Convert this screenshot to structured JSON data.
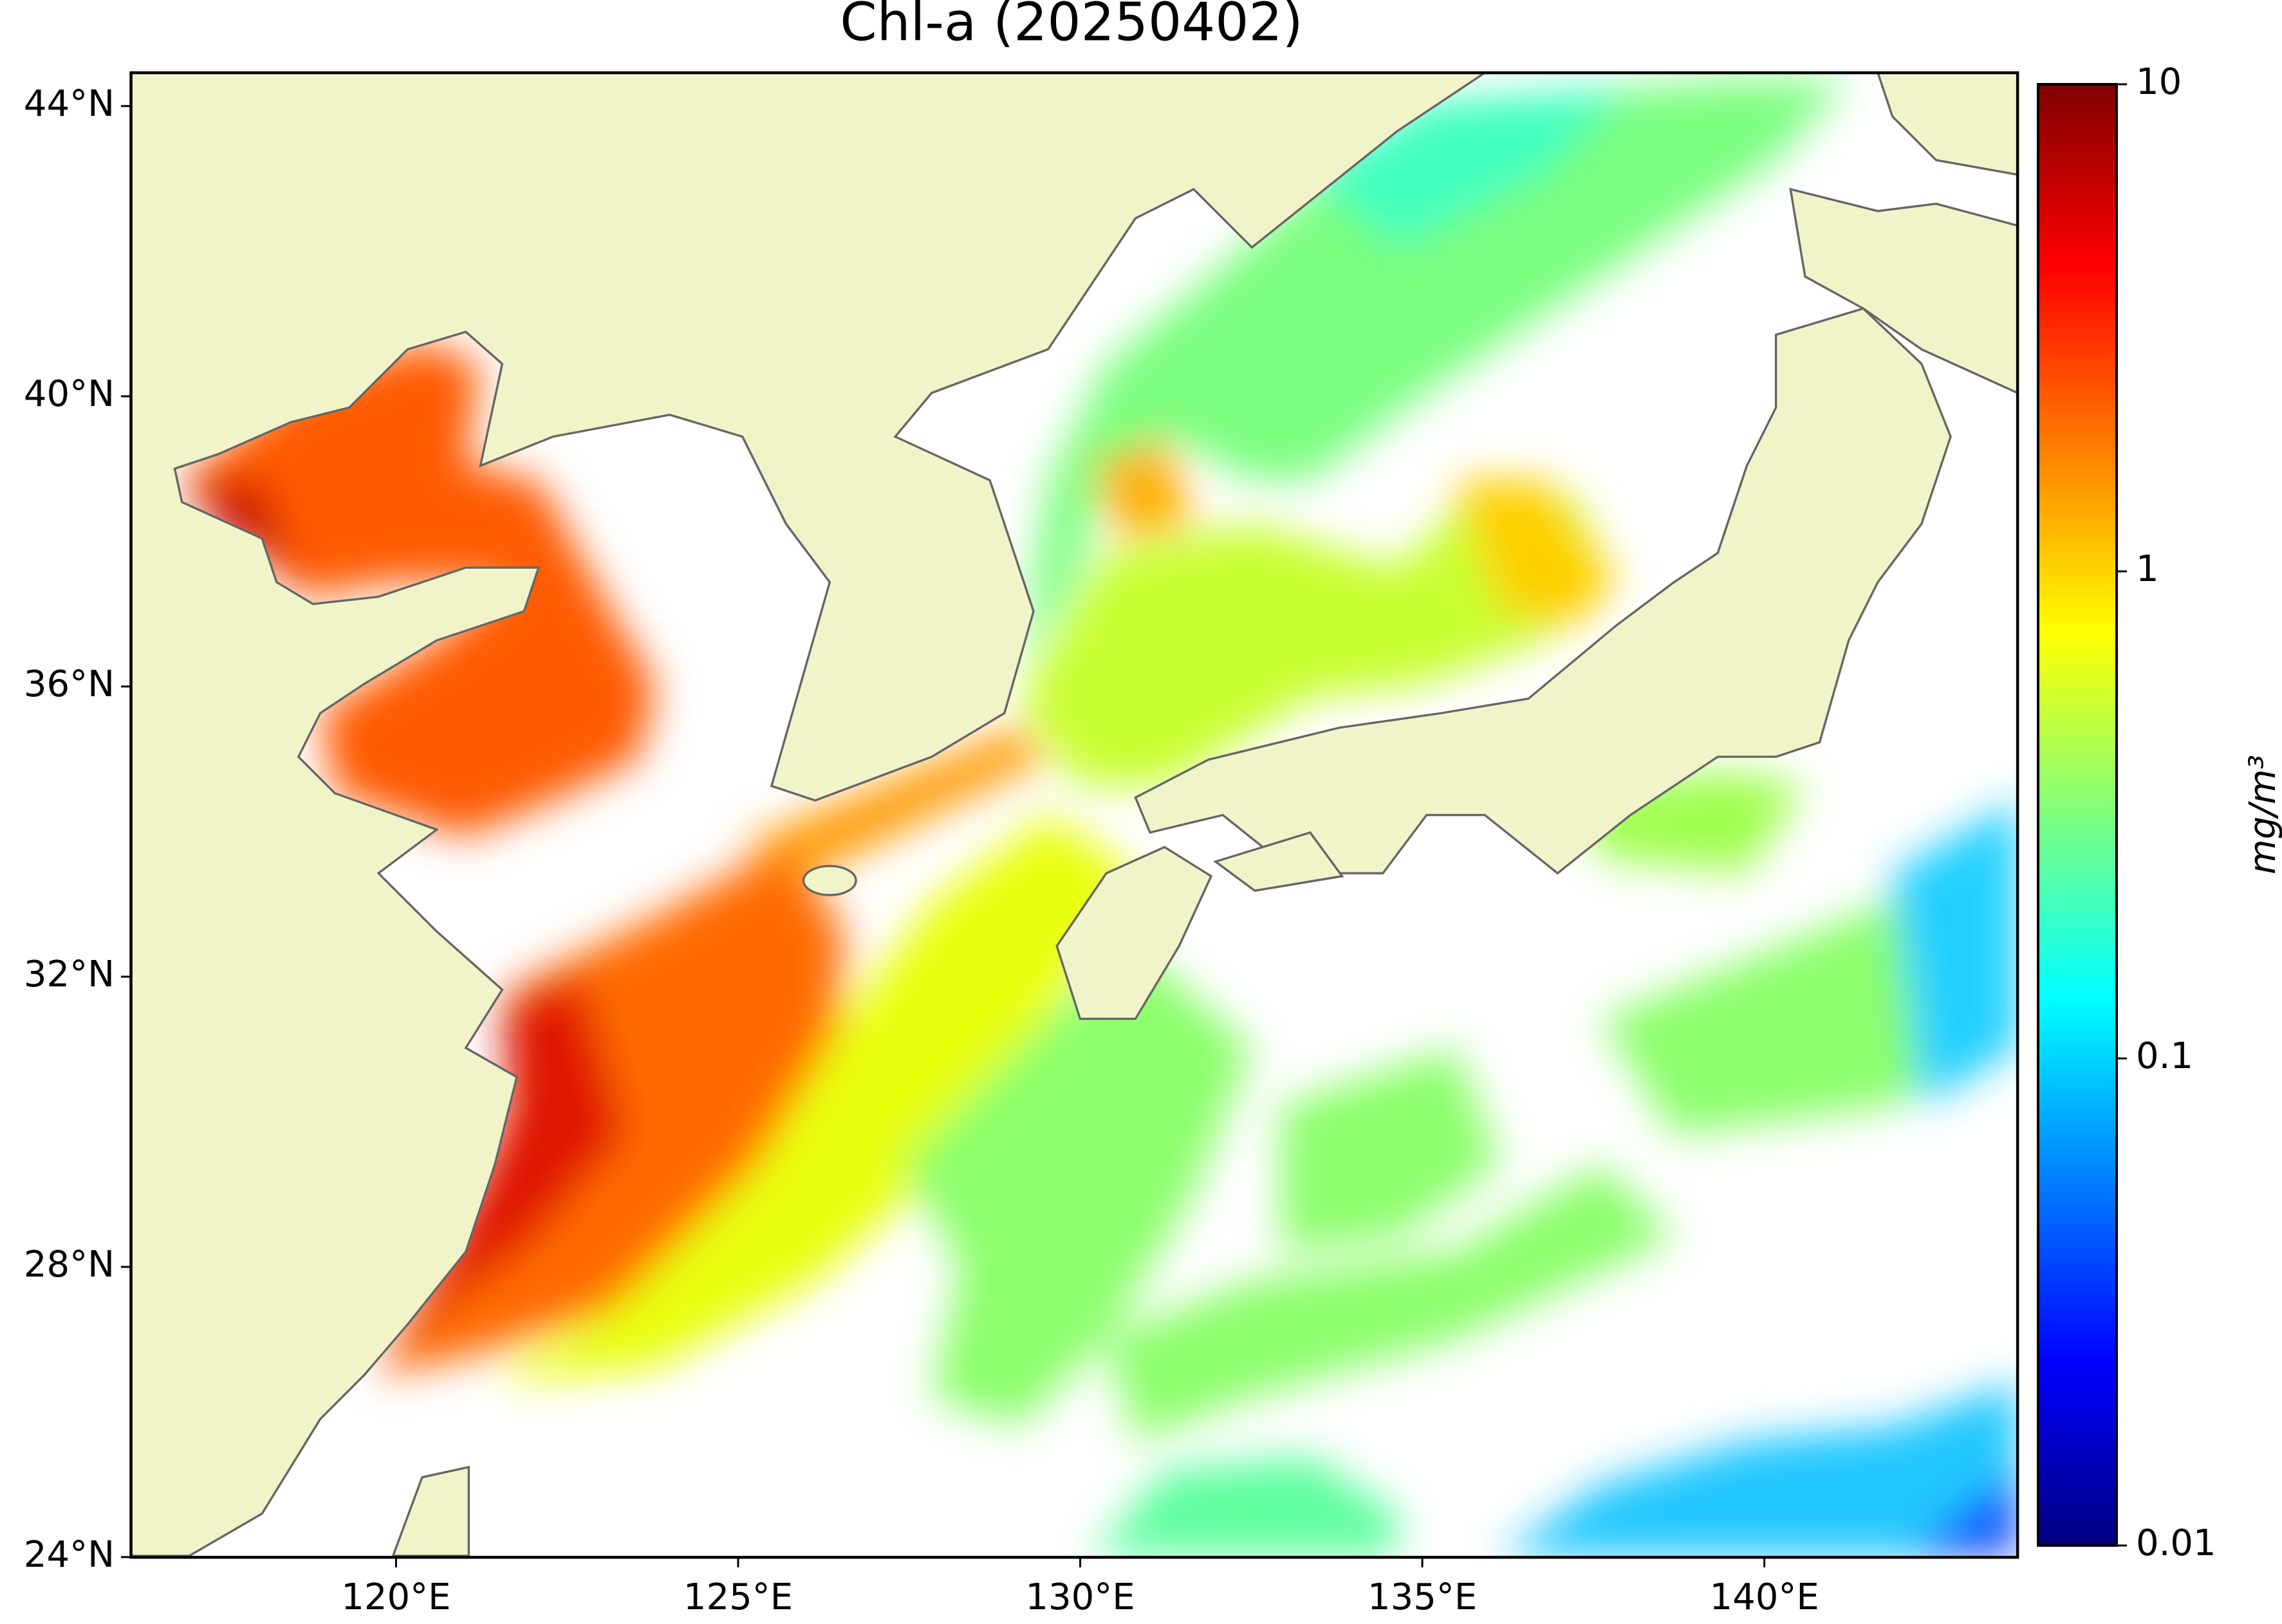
{
  "title": "Chl-a (20250402)",
  "map": {
    "xlim": [
      116.13,
      143.7
    ],
    "ylim": [
      24,
      44.46
    ],
    "xticks": [
      {
        "value": 120,
        "label": "120°E"
      },
      {
        "value": 125,
        "label": "125°E"
      },
      {
        "value": 130,
        "label": "130°E"
      },
      {
        "value": 135,
        "label": "135°E"
      },
      {
        "value": 140,
        "label": "140°E"
      }
    ],
    "yticks": [
      {
        "value": 24,
        "label": "24°N"
      },
      {
        "value": 28,
        "label": "28°N"
      },
      {
        "value": 32,
        "label": "32°N"
      },
      {
        "value": 36,
        "label": "36°N"
      },
      {
        "value": 40,
        "label": "40°N"
      },
      {
        "value": 44,
        "label": "44°N"
      }
    ]
  },
  "colorbar": {
    "label": "mg/m³",
    "scale": "log",
    "lim": [
      0.01,
      10
    ],
    "ticks": [
      0.01,
      0.1,
      1,
      10
    ],
    "colors": [
      "#00007f",
      "#0000ff",
      "#007fff",
      "#00ffff",
      "#7fff7f",
      "#ffff00",
      "#ff7f00",
      "#ff0000",
      "#7f0000"
    ]
  }
}
